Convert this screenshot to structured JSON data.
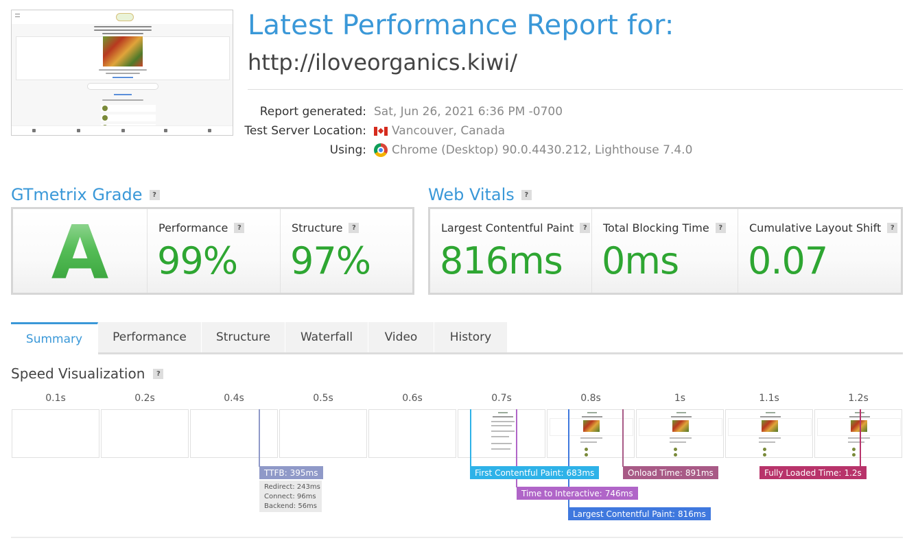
{
  "header": {
    "title": "Latest Performance Report for:",
    "url": "http://iloveorganics.kiwi/",
    "meta": [
      {
        "label": "Report generated:",
        "value": "Sat, Jun 26, 2021 6:36 PM -0700",
        "icon": ""
      },
      {
        "label": "Test Server Location:",
        "value": "Vancouver, Canada",
        "icon": "canada-flag-icon"
      },
      {
        "label": "Using:",
        "value": "Chrome (Desktop) 90.0.4430.212, Lighthouse 7.4.0",
        "icon": "chrome-icon"
      }
    ]
  },
  "grade": {
    "heading": "GTmetrix Grade",
    "letter": "A",
    "performance_label": "Performance",
    "performance_value": "99%",
    "structure_label": "Structure",
    "structure_value": "97%"
  },
  "vitals": {
    "heading": "Web Vitals",
    "lcp_label": "Largest Contentful Paint",
    "lcp_value": "816ms",
    "tbt_label": "Total Blocking Time",
    "tbt_value": "0ms",
    "cls_label": "Cumulative Layout Shift",
    "cls_value": "0.07"
  },
  "help_glyph": "?",
  "tabs": [
    "Summary",
    "Performance",
    "Structure",
    "Waterfall",
    "Video",
    "History"
  ],
  "active_tab": "Summary",
  "speed_viz": {
    "heading": "Speed Visualization",
    "times": [
      "0.1s",
      "0.2s",
      "0.4s",
      "0.5s",
      "0.6s",
      "0.7s",
      "0.8s",
      "1s",
      "1.1s",
      "1.2s"
    ],
    "markers": {
      "ttfb": {
        "label": "TTFB:",
        "value": "395ms",
        "color": "#8f99c8"
      },
      "fcp": {
        "label": "First Contentful Paint:",
        "value": "683ms",
        "color": "#2eb2e8"
      },
      "tti": {
        "label": "Time to Interactive:",
        "value": "746ms",
        "color": "#b065c8"
      },
      "lcp": {
        "label": "Largest Contentful Paint:",
        "value": "816ms",
        "color": "#3f78de"
      },
      "onload": {
        "label": "Onload Time:",
        "value": "891ms",
        "color": "#a85a86"
      },
      "fully": {
        "label": "Fully Loaded Time:",
        "value": "1.2s",
        "color": "#b8336a"
      }
    },
    "ttfb_breakdown": [
      {
        "label": "Redirect:",
        "value": "243ms"
      },
      {
        "label": "Connect:",
        "value": "96ms"
      },
      {
        "label": "Backend:",
        "value": "56ms"
      }
    ]
  },
  "colors": {
    "accent": "#3a98d8",
    "good": "#2ea632"
  }
}
